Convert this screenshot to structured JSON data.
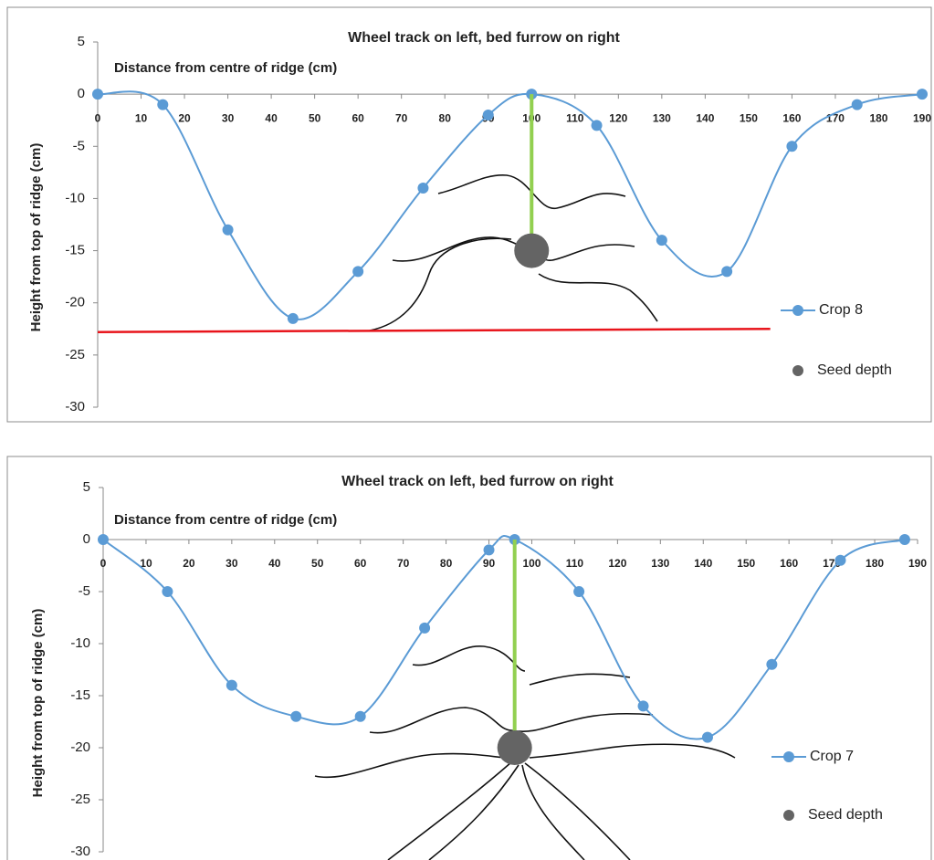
{
  "chart_data": [
    {
      "type": "line",
      "title": "Wheel track on left, bed furrow on right",
      "x_label": "Distance from centre of ridge (cm)",
      "y_label": "Height from top of ridge (cm)",
      "xlim": [
        0,
        190
      ],
      "xticks": [
        0,
        10,
        20,
        30,
        40,
        50,
        60,
        70,
        80,
        90,
        100,
        110,
        120,
        130,
        140,
        150,
        160,
        170,
        180,
        190
      ],
      "ylim": [
        -30,
        5
      ],
      "yticks": [
        5,
        0,
        -5,
        -10,
        -15,
        -20,
        -25,
        -30
      ],
      "legend": "right",
      "series": [
        {
          "name": "Crop 8",
          "color": "#5b9bd5",
          "line": true,
          "x": [
            0,
            15,
            30,
            45,
            60,
            75,
            90,
            100,
            115,
            130,
            145,
            160,
            175,
            190
          ],
          "values": [
            0,
            -1,
            -13,
            -21.5,
            -17,
            -9,
            -2,
            0,
            -3,
            -14,
            -17,
            -5,
            -1,
            0
          ]
        },
        {
          "name": "Seed depth",
          "color": "#646464",
          "line": false,
          "stem_color": "#92d050",
          "x": [
            100
          ],
          "values": [
            -15
          ]
        }
      ],
      "reference_line": {
        "color": "#e8141b",
        "x": [
          0,
          155
        ],
        "values": [
          -22.8,
          -22.5
        ]
      }
    },
    {
      "type": "line",
      "title": "Wheel track on left, bed furrow on right",
      "x_label": "Distance from centre of ridge (cm)",
      "y_label": "Height from top of ridge (cm)",
      "xlim": [
        0,
        190
      ],
      "xticks": [
        0,
        10,
        20,
        30,
        40,
        50,
        60,
        70,
        80,
        90,
        100,
        110,
        120,
        130,
        140,
        150,
        160,
        170,
        180,
        190
      ],
      "ylim": [
        -30,
        5
      ],
      "yticks": [
        5,
        0,
        -5,
        -10,
        -15,
        -20,
        -25,
        -30
      ],
      "legend": "right",
      "series": [
        {
          "name": "Crop 7",
          "color": "#5b9bd5",
          "line": true,
          "x": [
            0,
            15,
            30,
            45,
            60,
            75,
            90,
            96,
            111,
            126,
            141,
            156,
            172,
            187
          ],
          "values": [
            0,
            -5,
            -14,
            -17,
            -17,
            -8.5,
            -1,
            0,
            -5,
            -16,
            -19,
            -12,
            -2,
            0
          ]
        },
        {
          "name": "Seed depth",
          "color": "#646464",
          "line": false,
          "stem_color": "#92d050",
          "x": [
            96
          ],
          "values": [
            -20
          ]
        }
      ]
    }
  ]
}
